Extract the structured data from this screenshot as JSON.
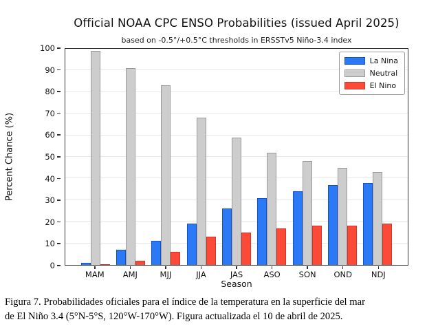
{
  "chart_data": {
    "type": "bar",
    "title": "Official NOAA CPC ENSO Probabilities (issued April 2025)",
    "subtitle": "based on -0.5°/+0.5°C thresholds in ERSSTv5 Niño-3.4 index",
    "xlabel": "Season",
    "ylabel": "Percent Chance (%)",
    "ylim": [
      0,
      100
    ],
    "yticks": [
      0,
      10,
      20,
      30,
      40,
      50,
      60,
      70,
      80,
      90,
      100
    ],
    "grid": "horizontal-light",
    "legend_position": "top-right",
    "categories": [
      "MAM",
      "AMJ",
      "MJJ",
      "JJA",
      "JAS",
      "ASO",
      "SON",
      "OND",
      "NDJ"
    ],
    "series": [
      {
        "name": "La Nina",
        "color": "#2b79f5",
        "edge_color": "#1450cc",
        "values": [
          1,
          7,
          11,
          19,
          26,
          31,
          34,
          37,
          38
        ]
      },
      {
        "name": "Neutral",
        "color": "#cdcdcd",
        "edge_color": "#999999",
        "values": [
          99,
          91,
          83,
          68,
          59,
          52,
          48,
          45,
          43
        ]
      },
      {
        "name": "El Nino",
        "color": "#fb4b38",
        "edge_color": "#d43425",
        "values": [
          0,
          2,
          6,
          13,
          15,
          17,
          18,
          18,
          19
        ]
      }
    ]
  },
  "caption": {
    "line1": "Figura 7. Probabilidades oficiales para el índice de la temperatura en la superficie del mar",
    "line2": "de El Niño 3.4  (5°N-5°S, 120°W-170°W). Figura actualizada el 10 de abril de 2025."
  }
}
